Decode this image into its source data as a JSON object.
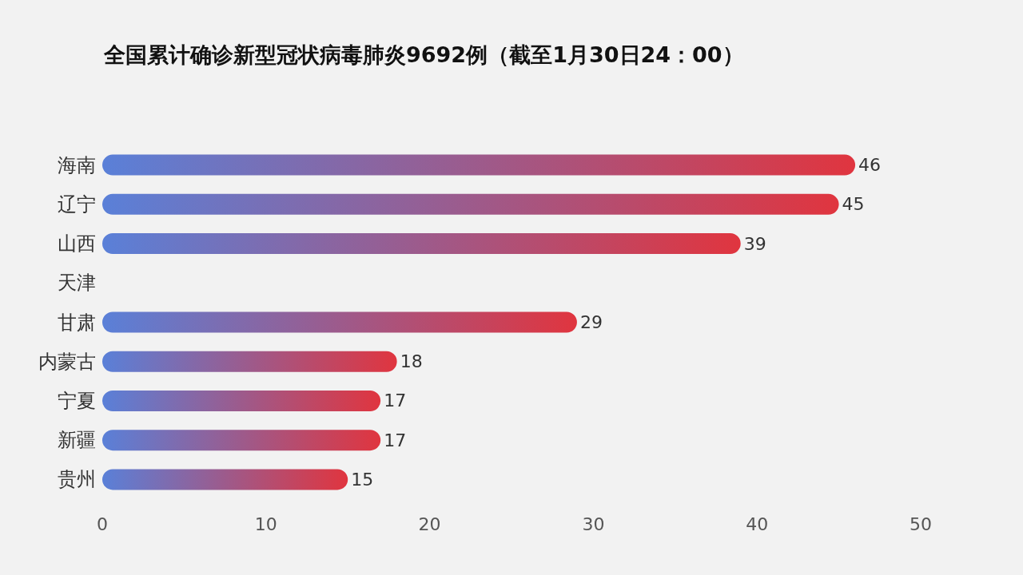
{
  "chart_data": {
    "type": "bar",
    "orientation": "horizontal",
    "title": "全国累计确诊新型冠状病毒肺炎9692例（截至1月30日24：00）",
    "categories": [
      "海南",
      "辽宁",
      "山西",
      "天津",
      "甘肃",
      "内蒙古",
      "宁夏",
      "新疆",
      "贵州"
    ],
    "values": [
      46,
      45,
      39,
      null,
      29,
      18,
      17,
      17,
      15
    ],
    "color": "#e0353f",
    "xlim": [
      0,
      50
    ],
    "xticks": [
      0,
      10,
      20,
      30,
      40,
      50
    ],
    "grid": false,
    "data_labels": true
  }
}
